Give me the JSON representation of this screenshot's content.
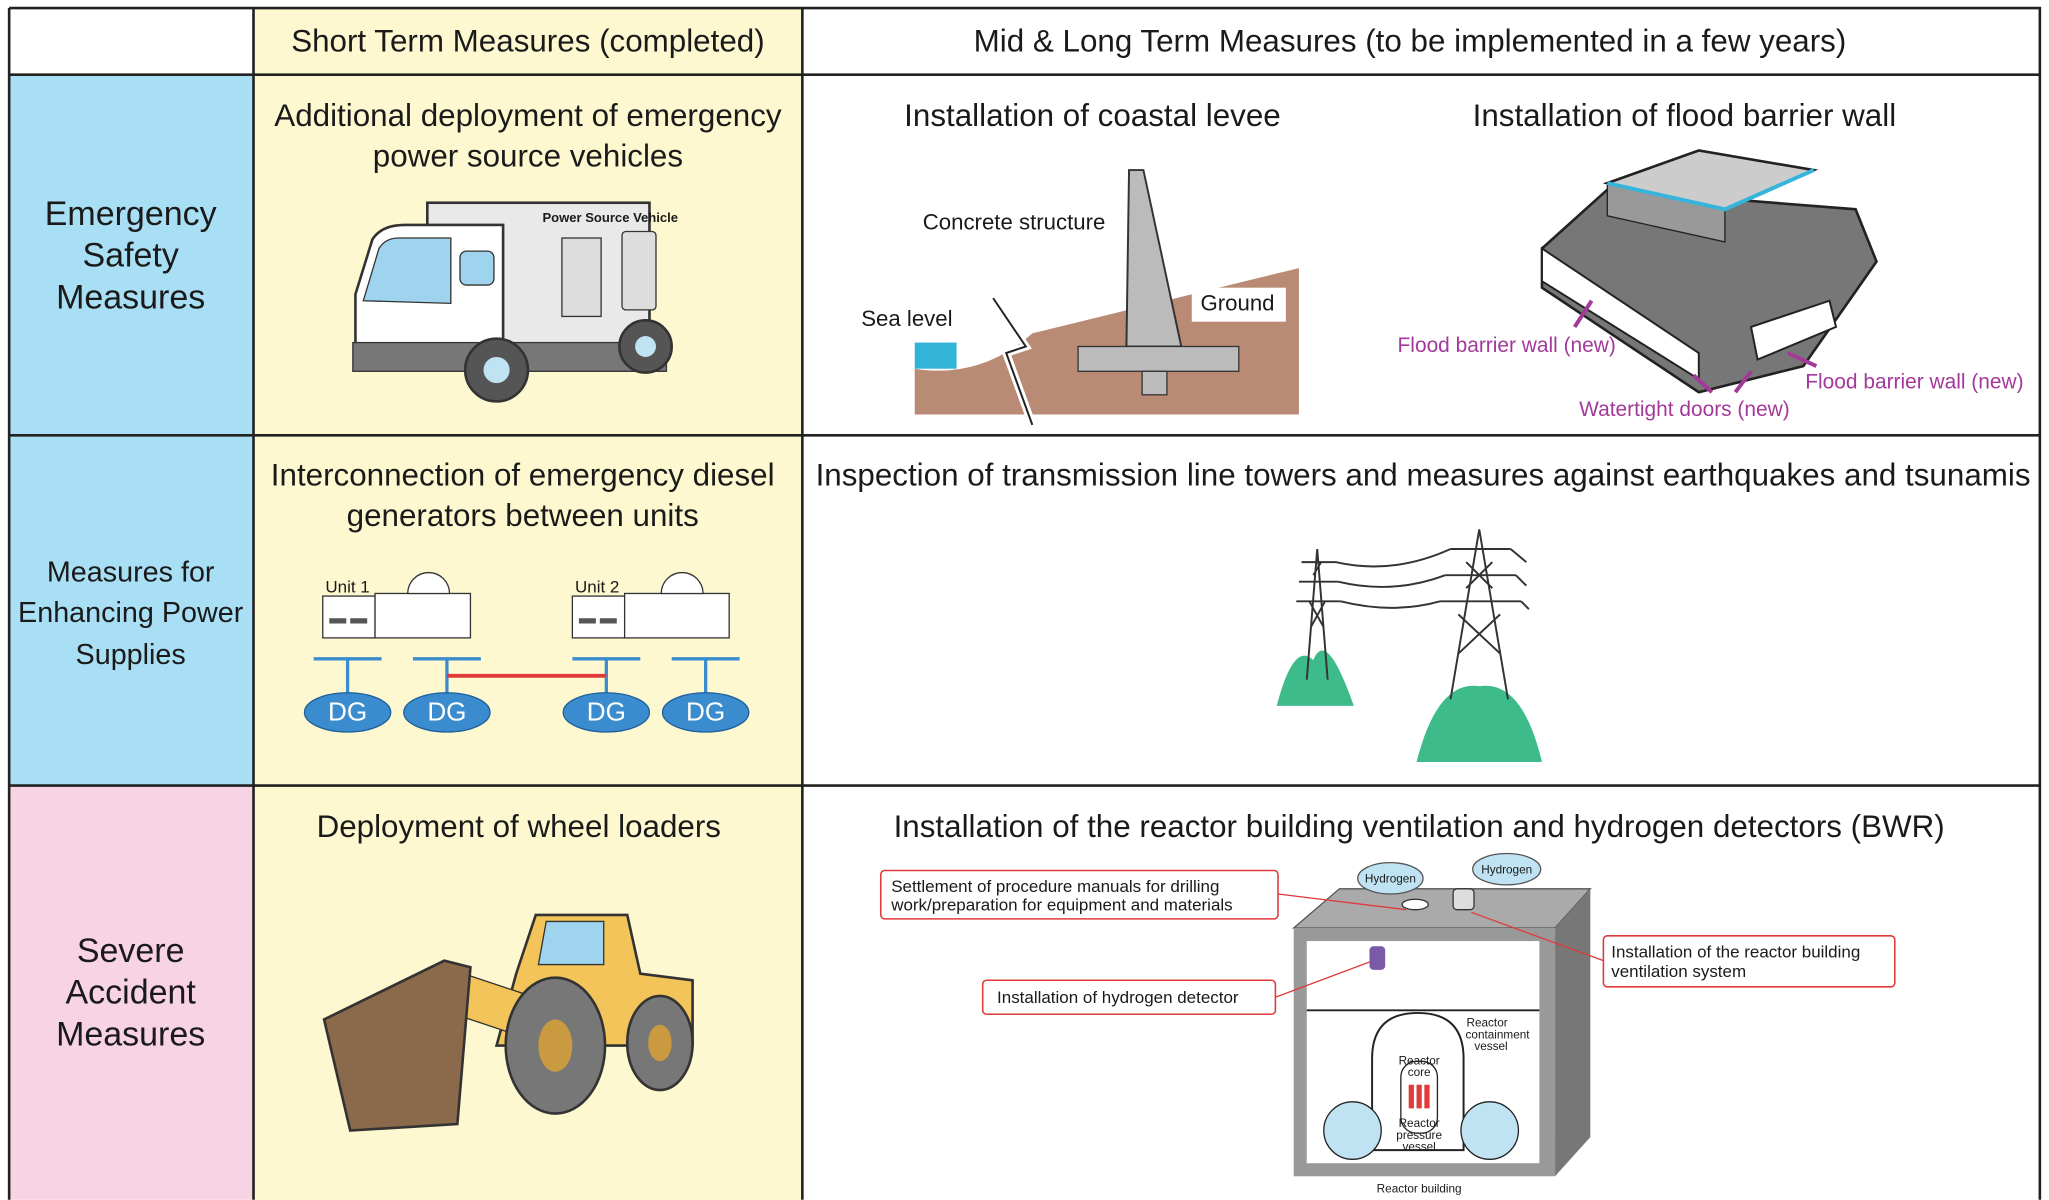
{
  "header": {
    "columns": [
      "Short Term Measures (completed)",
      "Mid & Long Term Measures (to be implemented in a few years)"
    ]
  },
  "rows": [
    {
      "label": [
        "Emergency",
        "Safety",
        "Measures"
      ],
      "short_term": {
        "title": [
          "Additional deployment of emergency",
          "power source vehicles"
        ],
        "vehicle_label": "Power Source Vehicle"
      },
      "mid_long_term": [
        {
          "title": "Installation of coastal levee",
          "labels": [
            "Concrete structure",
            "Sea level",
            "Ground"
          ]
        },
        {
          "title": "Installation of flood barrier wall",
          "labels": [
            "Flood barrier wall (new)",
            "Watertight doors (new)",
            "Flood barrier wall (new)"
          ]
        }
      ]
    },
    {
      "label": [
        "Measures for",
        "Enhancing Power",
        "Supplies"
      ],
      "short_term": {
        "title": [
          "Interconnection of emergency diesel",
          "generators between units"
        ],
        "units": [
          "Unit 1",
          "Unit 2"
        ],
        "generators": [
          "DG",
          "DG",
          "DG",
          "DG"
        ]
      },
      "mid_long_term": [
        {
          "title": "Inspection of transmission line towers and measures against earthquakes and tsunamis"
        }
      ]
    },
    {
      "label": [
        "Severe",
        "Accident",
        "Measures"
      ],
      "short_term": {
        "title": [
          "Deployment of wheel loaders"
        ]
      },
      "mid_long_term": [
        {
          "title": "Installation of the reactor building ventilation and hydrogen detectors (BWR)",
          "callouts": [
            [
              "Settlement of procedure manuals for drilling",
              "work/preparation for equipment and materials"
            ],
            [
              "Installation of hydrogen detector"
            ],
            [
              "Installation of the reactor building",
              "ventilation system"
            ]
          ],
          "gas_labels": [
            "Hydrogen",
            "Hydrogen"
          ],
          "parts": [
            [
              "Reactor",
              "containment",
              "vessel"
            ],
            [
              "Reactor",
              "core"
            ],
            [
              "Reactor",
              "pressure",
              "vessel"
            ],
            [
              "Reactor building"
            ]
          ]
        }
      ]
    }
  ]
}
